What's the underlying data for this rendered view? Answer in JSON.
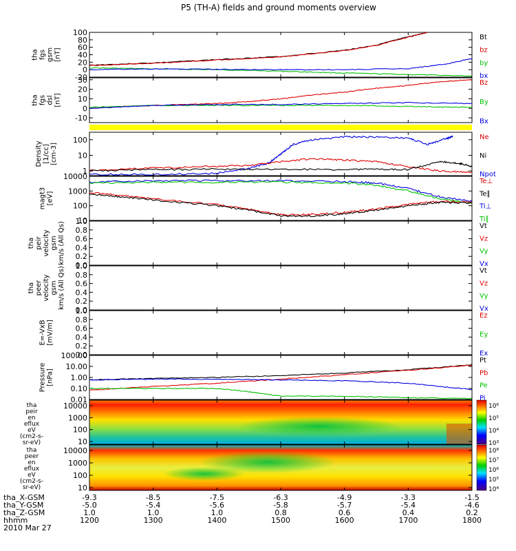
{
  "title": "P5 (TH-A) fields and ground moments overview",
  "chart_data": [
    {
      "type": "line",
      "panel": "fgs_gsm_top",
      "ylabel_lines": [
        "tha",
        "fgs",
        "gsm",
        "[nT]"
      ],
      "yticks": [
        "100",
        "80",
        "60",
        "40",
        "20",
        "0",
        "-20"
      ],
      "ylim": [
        -20,
        100
      ],
      "legend": [
        {
          "name": "Bt",
          "color": "#000000"
        },
        {
          "name": "bz",
          "color": "#e00000"
        },
        {
          "name": "by",
          "color": "#00c000"
        },
        {
          "name": "bx",
          "color": "#0000e0"
        }
      ],
      "series": [
        {
          "name": "Bt",
          "color": "#000000",
          "x": [
            1200,
            1300,
            1400,
            1500,
            1600,
            1650,
            1700,
            1730,
            1800
          ],
          "y": [
            12,
            18,
            27,
            35,
            52,
            66,
            88,
            100,
            120
          ]
        },
        {
          "name": "bz",
          "color": "#e00000",
          "x": [
            1200,
            1300,
            1400,
            1500,
            1600,
            1650,
            1700,
            1730
          ],
          "y": [
            11,
            17,
            26,
            34,
            51,
            65,
            87,
            100
          ]
        },
        {
          "name": "by",
          "color": "#00c000",
          "x": [
            1200,
            1300,
            1400,
            1500,
            1600,
            1700,
            1800
          ],
          "y": [
            5,
            2,
            0,
            -4,
            -9,
            -13,
            -17
          ]
        },
        {
          "name": "bx",
          "color": "#0000e0",
          "x": [
            1200,
            1300,
            1400,
            1500,
            1600,
            1700,
            1760,
            1800
          ],
          "y": [
            0,
            2,
            1,
            0,
            0,
            3,
            15,
            30
          ]
        }
      ]
    },
    {
      "type": "line",
      "panel": "fgs_dsl",
      "ylabel_lines": [
        "tha",
        "fgs",
        "dsl",
        "[nT]"
      ],
      "yticks": [
        "30",
        "20",
        "10",
        "0",
        "-10"
      ],
      "ylim": [
        -15,
        32
      ],
      "legend": [
        {
          "name": "Bz",
          "color": "#e00000"
        },
        {
          "name": "By",
          "color": "#00c000"
        },
        {
          "name": "Bx",
          "color": "#0000e0"
        }
      ],
      "series": [
        {
          "name": "Bz",
          "color": "#e00000",
          "x": [
            1200,
            1250,
            1300,
            1400,
            1450,
            1500,
            1550,
            1600,
            1650,
            1700,
            1750,
            1800
          ],
          "y": [
            0,
            2,
            3,
            5,
            7,
            10,
            14,
            17,
            21,
            24,
            28,
            30
          ]
        },
        {
          "name": "By",
          "color": "#00c000",
          "x": [
            1200,
            1300,
            1400,
            1500,
            1600,
            1700,
            1800
          ],
          "y": [
            1,
            3,
            3,
            3,
            3,
            2,
            1
          ]
        },
        {
          "name": "Bx",
          "color": "#0000e0",
          "x": [
            1200,
            1300,
            1400,
            1500,
            1600,
            1700,
            1800
          ],
          "y": [
            0,
            3,
            4,
            4,
            5,
            6,
            5
          ]
        }
      ]
    },
    {
      "type": "line",
      "panel": "density",
      "yscale": "log",
      "ylabel_lines": [
        "Density",
        "[1/cc]",
        "[cm-3]"
      ],
      "yticks": [
        "100",
        "10",
        "1"
      ],
      "ylim": [
        0.5,
        300
      ],
      "legend": [
        {
          "name": "Ne",
          "color": "#e00000"
        },
        {
          "name": "Ni",
          "color": "#000000"
        },
        {
          "name": "Npot",
          "color": "#0000e0"
        }
      ],
      "series": [
        {
          "name": "Npot",
          "color": "#0000e0",
          "x": [
            1200,
            1300,
            1400,
            1450,
            1480,
            1500,
            1520,
            1550,
            1600,
            1650,
            1700,
            1730,
            1760,
            1770
          ],
          "y": [
            0.6,
            0.6,
            0.7,
            1.5,
            3,
            12,
            50,
            100,
            150,
            150,
            130,
            50,
            120,
            160
          ]
        },
        {
          "name": "Ne",
          "color": "#e00000",
          "x": [
            1200,
            1300,
            1400,
            1450,
            1500,
            1550,
            1600,
            1650,
            1700,
            1750,
            1800
          ],
          "y": [
            1.1,
            1.5,
            2,
            2.2,
            4,
            6,
            5,
            4,
            1.8,
            1,
            0.8
          ]
        },
        {
          "name": "Ni",
          "color": "#000000",
          "x": [
            1200,
            1300,
            1400,
            1500,
            1600,
            1650,
            1700,
            1750,
            1780,
            1800
          ],
          "y": [
            1,
            1.2,
            1.3,
            1.3,
            1.2,
            1.3,
            1.2,
            4,
            3,
            2
          ]
        }
      ]
    },
    {
      "type": "line",
      "panel": "temperature",
      "yscale": "log",
      "ylabel_lines": [
        "magt3",
        "[eV]"
      ],
      "yticks": [
        "10000",
        "1000",
        "100",
        "10"
      ],
      "ylim": [
        10,
        10000
      ],
      "legend": [
        {
          "name": "Te⊥",
          "color": "#e00000"
        },
        {
          "name": "Te∥",
          "color": "#000000"
        },
        {
          "name": "Ti⊥",
          "color": "#0000e0"
        },
        {
          "name": "Ti∥",
          "color": "#00c000"
        }
      ],
      "series": [
        {
          "name": "Ti⊥",
          "color": "#0000e0",
          "x": [
            1200,
            1300,
            1400,
            1500,
            1600,
            1650,
            1700,
            1750,
            1800
          ],
          "y": [
            4000,
            5000,
            5000,
            5000,
            4500,
            3500,
            1500,
            400,
            200
          ]
        },
        {
          "name": "Ti∥",
          "color": "#00c000",
          "x": [
            1200,
            1300,
            1400,
            1500,
            1600,
            1650,
            1700,
            1750,
            1800
          ],
          "y": [
            3500,
            4000,
            4000,
            4000,
            3500,
            2500,
            1000,
            300,
            150
          ]
        },
        {
          "name": "Te⊥",
          "color": "#e00000",
          "x": [
            1200,
            1250,
            1300,
            1400,
            1450,
            1500,
            1550,
            1600,
            1650,
            1700,
            1750,
            1800
          ],
          "y": [
            800,
            500,
            300,
            120,
            60,
            25,
            25,
            35,
            60,
            120,
            200,
            180
          ]
        },
        {
          "name": "Te∥",
          "color": "#000000",
          "x": [
            1200,
            1250,
            1300,
            1400,
            1450,
            1500,
            1550,
            1600,
            1650,
            1700,
            1750,
            1800
          ],
          "y": [
            600,
            400,
            250,
            100,
            50,
            20,
            20,
            28,
            50,
            100,
            170,
            150
          ]
        }
      ]
    },
    {
      "type": "line",
      "panel": "peir_velocity",
      "ylabel_lines": [
        "tha",
        "peir",
        "velocity",
        "gsm",
        "km/s (All Qs)"
      ],
      "yticks": [
        "1.0",
        "0.8",
        "0.6",
        "0.4",
        "0.2",
        "0.0"
      ],
      "ylim": [
        0,
        1
      ],
      "legend": [
        {
          "name": "Vt",
          "color": "#000000"
        },
        {
          "name": "Vz",
          "color": "#e00000"
        },
        {
          "name": "Vy",
          "color": "#00c000"
        },
        {
          "name": "Vx",
          "color": "#0000e0"
        }
      ],
      "series": []
    },
    {
      "type": "line",
      "panel": "peer_velocity",
      "ylabel_lines": [
        "tha",
        "peer",
        "velocity",
        "gsm",
        "km/s (All Qs)"
      ],
      "yticks": [
        "1.0",
        "0.8",
        "0.6",
        "0.4",
        "0.2",
        "0.0"
      ],
      "ylim": [
        0,
        1
      ],
      "legend": [
        {
          "name": "Vt",
          "color": "#000000"
        },
        {
          "name": "Vz",
          "color": "#e00000"
        },
        {
          "name": "Vy",
          "color": "#00c000"
        },
        {
          "name": "Vx",
          "color": "#0000e0"
        }
      ],
      "series": []
    },
    {
      "type": "line",
      "panel": "efield",
      "ylabel_lines": [
        "E=-VxB",
        "[mV/m]"
      ],
      "yticks": [
        "1.0",
        "0.8",
        "0.6",
        "0.4",
        "0.2",
        "0.0"
      ],
      "ylim": [
        0,
        1
      ],
      "legend": [
        {
          "name": "Ez",
          "color": "#e00000"
        },
        {
          "name": "Ey",
          "color": "#00c000"
        },
        {
          "name": "Ex",
          "color": "#0000e0"
        }
      ],
      "series": []
    },
    {
      "type": "line",
      "panel": "pressure",
      "yscale": "log",
      "ylabel_lines": [
        "Pressure",
        "[nPa]"
      ],
      "yticks": [
        "100.00",
        "10.00",
        "1.00",
        "0.10",
        "0.01"
      ],
      "ylim": [
        0.01,
        100
      ],
      "legend": [
        {
          "name": "Pt",
          "color": "#000000"
        },
        {
          "name": "Pb",
          "color": "#e00000"
        },
        {
          "name": "Pe",
          "color": "#00c000"
        },
        {
          "name": "Pi",
          "color": "#0000e0"
        }
      ],
      "series": [
        {
          "name": "Pt",
          "color": "#000000",
          "x": [
            1200,
            1300,
            1400,
            1500,
            1600,
            1700,
            1800
          ],
          "y": [
            0.6,
            0.8,
            1,
            1.5,
            2.5,
            5,
            14
          ]
        },
        {
          "name": "Pb",
          "color": "#e00000",
          "x": [
            1200,
            1300,
            1400,
            1500,
            1600,
            1700,
            1800
          ],
          "y": [
            0.07,
            0.15,
            0.3,
            0.7,
            1.8,
            4.5,
            13
          ]
        },
        {
          "name": "Pe",
          "color": "#00c000",
          "x": [
            1200,
            1300,
            1400,
            1450,
            1500,
            1600,
            1700,
            1800
          ],
          "y": [
            0.1,
            0.1,
            0.1,
            0.05,
            0.02,
            0.02,
            0.015,
            0.012
          ]
        },
        {
          "name": "Pi",
          "color": "#0000e0",
          "x": [
            1200,
            1300,
            1400,
            1500,
            1600,
            1700,
            1750,
            1800
          ],
          "y": [
            0.6,
            0.7,
            0.7,
            0.6,
            0.5,
            0.3,
            0.15,
            0.08
          ]
        }
      ]
    },
    {
      "type": "heatmap",
      "panel": "peir_spectrogram",
      "ylabel_lines": [
        "tha",
        "peir",
        "en",
        "eflux",
        "eV",
        "(cm2-s-",
        "sr-eV)"
      ],
      "yticks": [
        "10000",
        "1000",
        "100",
        "10"
      ],
      "colorbar_ticks": [
        "10⁶",
        "10⁵",
        "10⁴",
        "10³"
      ]
    },
    {
      "type": "heatmap",
      "panel": "peer_spectrogram",
      "ylabel_lines": [
        "tha",
        "peer",
        "en",
        "eflux",
        "eV",
        "(cm2-s-",
        "sr-eV)"
      ],
      "yticks": [
        "10000",
        "1000",
        "100",
        "10"
      ],
      "colorbar_ticks": [
        "10⁸",
        "10⁷",
        "10⁶",
        "10⁵",
        "10⁴"
      ]
    }
  ],
  "x_axis": {
    "tick_rows": [
      {
        "label": "tha_X-GSM",
        "values": [
          "-9.3",
          "-8.5",
          "-7.5",
          "-6.3",
          "-4.9",
          "-3.3",
          "-1.5"
        ]
      },
      {
        "label": "tha_Y-GSM",
        "values": [
          "-5.0",
          "-5.4",
          "-5.6",
          "-5.8",
          "-5.7",
          "-5.4",
          "-4.6"
        ]
      },
      {
        "label": "tha_Z-GSM",
        "values": [
          "1.0",
          "1.0",
          "1.0",
          "0.8",
          "0.6",
          "0.4",
          "0.2"
        ]
      },
      {
        "label": "hhmm",
        "values": [
          "1200",
          "1300",
          "1400",
          "1500",
          "1600",
          "1700",
          "1800"
        ]
      }
    ],
    "date": "2010 Mar 27"
  }
}
